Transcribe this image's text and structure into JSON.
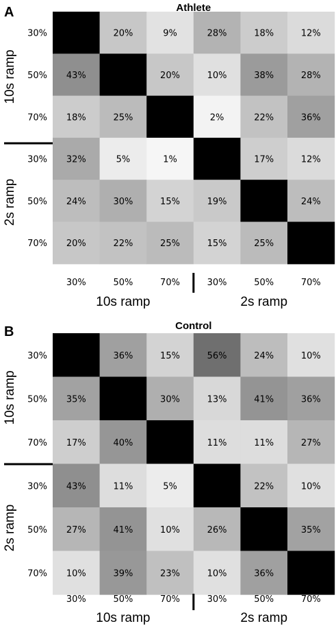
{
  "chart_data": [
    {
      "type": "heatmap",
      "panel": "A",
      "title": "Athlete",
      "tick_labels": [
        "30%",
        "50%",
        "70%",
        "30%",
        "50%",
        "70%"
      ],
      "groups": [
        "10s ramp",
        "2s ramp"
      ],
      "values": [
        [
          null,
          20,
          9,
          28,
          18,
          12
        ],
        [
          43,
          null,
          20,
          10,
          38,
          28
        ],
        [
          18,
          25,
          null,
          2,
          22,
          36
        ],
        [
          32,
          5,
          1,
          null,
          17,
          12
        ],
        [
          24,
          30,
          15,
          19,
          null,
          24
        ],
        [
          20,
          22,
          25,
          15,
          25,
          null
        ]
      ],
      "labels": [
        [
          "",
          "20%",
          "9%",
          "28%",
          "18%",
          "12%"
        ],
        [
          "43%",
          "",
          "20%",
          "10%",
          "38%",
          "28%"
        ],
        [
          "18%",
          "25%",
          "",
          "2%",
          "22%",
          "36%"
        ],
        [
          "32%",
          "5%",
          "1%",
          "",
          "17%",
          "12%"
        ],
        [
          "24%",
          "30%",
          "15%",
          "19%",
          "",
          "24%"
        ],
        [
          "20%",
          "22%",
          "25%",
          "15%",
          "25%",
          ""
        ]
      ],
      "diagonal_color": "#000000",
      "colorscale": "white (low) to dark gray (high)"
    },
    {
      "type": "heatmap",
      "panel": "B",
      "title": "Control",
      "tick_labels": [
        "30%",
        "50%",
        "70%",
        "30%",
        "50%",
        "70%"
      ],
      "groups": [
        "10s ramp",
        "2s ramp"
      ],
      "values": [
        [
          null,
          36,
          15,
          56,
          24,
          10
        ],
        [
          35,
          null,
          30,
          13,
          41,
          36
        ],
        [
          17,
          40,
          null,
          11,
          11,
          27
        ],
        [
          43,
          11,
          5,
          null,
          22,
          10
        ],
        [
          27,
          41,
          10,
          26,
          null,
          35
        ],
        [
          10,
          39,
          23,
          10,
          36,
          null
        ]
      ],
      "labels": [
        [
          "",
          "36%",
          "15%",
          "56%",
          "24%",
          "10%"
        ],
        [
          "35%",
          "",
          "30%",
          "13%",
          "41%",
          "36%"
        ],
        [
          "17%",
          "40%",
          "",
          "11%",
          "11%",
          "27%"
        ],
        [
          "43%",
          "11%",
          "5%",
          "",
          "22%",
          "10%"
        ],
        [
          "27%",
          "41%",
          "10%",
          "26%",
          "",
          "35%"
        ],
        [
          "10%",
          "39%",
          "23%",
          "10%",
          "36%",
          ""
        ]
      ],
      "diagonal_color": "#000000",
      "colorscale": "white (low) to dark gray (high)"
    }
  ]
}
